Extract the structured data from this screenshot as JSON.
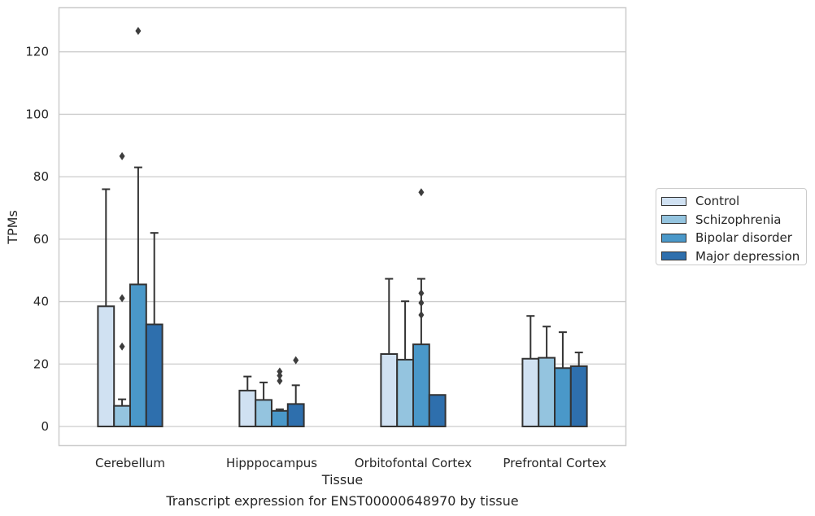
{
  "caption": "Transcript expression for ENST00000648970 by tissue",
  "colors": {
    "Control": "#d0e1f2",
    "Schizophrenia": "#94c4df",
    "Bipolar disorder": "#4a98c9",
    "Major depression": "#2e6fad",
    "edge": "#333333",
    "grid": "#cccccc"
  },
  "chart_data": {
    "type": "bar",
    "title": "",
    "xlabel": "Tissue",
    "ylabel": "TPMs",
    "ylim": [
      -6,
      134
    ],
    "yticks": [
      0,
      20,
      40,
      60,
      80,
      100,
      120
    ],
    "grid": "horizontal",
    "legend_position": "right",
    "categories": [
      "Cerebellum",
      "Hipppocampus",
      "Orbitofontal Cortex",
      "Prefrontal Cortex"
    ],
    "series": [
      {
        "name": "Control",
        "values": [
          38.5,
          11.5,
          23.2,
          21.7
        ],
        "whisker_high": [
          76,
          16,
          47.3,
          35.4
        ],
        "outliers": [
          [],
          [],
          [],
          []
        ]
      },
      {
        "name": "Schizophrenia",
        "values": [
          6.6,
          8.5,
          21.4,
          22.0
        ],
        "whisker_high": [
          8.7,
          14.1,
          40.1,
          32.0
        ],
        "outliers": [
          [
            86.6,
            41.1,
            25.6
          ],
          [],
          [],
          []
        ]
      },
      {
        "name": "Bipolar disorder",
        "values": [
          45.5,
          5.0,
          26.3,
          18.7
        ],
        "whisker_high": [
          83,
          5.5,
          47.3,
          30.2
        ],
        "outliers": [
          [
            126.7
          ],
          [
            17.6,
            16.3,
            14.6
          ],
          [
            75,
            42.7,
            39.6,
            35.7
          ],
          []
        ]
      },
      {
        "name": "Major depression",
        "values": [
          32.7,
          7.2,
          10.1,
          19.3
        ],
        "whisker_high": [
          62,
          13.2,
          10.1,
          23.7
        ],
        "outliers": [
          [],
          [
            21.2
          ],
          [],
          []
        ]
      }
    ]
  }
}
